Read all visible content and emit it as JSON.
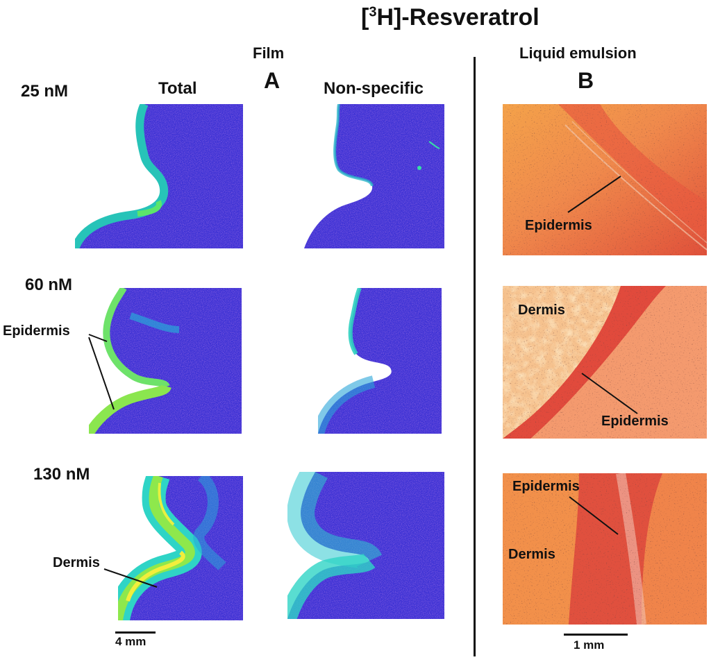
{
  "title": {
    "prefix": "[",
    "superscript": "3",
    "suffix": "H]-Resveratrol"
  },
  "film": {
    "heading": "Film",
    "panel_letter": "A",
    "col_total": "Total",
    "col_nonspecific": "Non-specific",
    "scale_bar": "4 mm"
  },
  "emulsion": {
    "heading": "Liquid emulsion",
    "panel_letter": "B",
    "scale_bar": "1 mm"
  },
  "rows": [
    {
      "concentration": "25 nM"
    },
    {
      "concentration": "60 nM"
    },
    {
      "concentration": "130 nM"
    }
  ],
  "annotations": {
    "film_60_epidermis": "Epidermis",
    "film_130_dermis": "Dermis",
    "em_25_epidermis": "Epidermis",
    "em_60_dermis": "Dermis",
    "em_60_epidermis": "Epidermis",
    "em_130_epidermis": "Epidermis",
    "em_130_dermis": "Dermis"
  },
  "colors": {
    "film_background_tissue": "#3b2fd6",
    "film_edge_signal": "#2bd9a0",
    "film_hot_signal": "#e8f040",
    "emulsion_tissue": "#f0704a",
    "emulsion_dark": "#d94030"
  }
}
